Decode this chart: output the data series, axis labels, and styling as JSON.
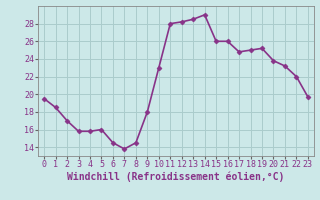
{
  "x": [
    0,
    1,
    2,
    3,
    4,
    5,
    6,
    7,
    8,
    9,
    10,
    11,
    12,
    13,
    14,
    15,
    16,
    17,
    18,
    19,
    20,
    21,
    22,
    23
  ],
  "y": [
    19.5,
    18.5,
    17.0,
    15.8,
    15.8,
    16.0,
    14.5,
    13.8,
    14.5,
    18.0,
    23.0,
    28.0,
    28.2,
    28.5,
    29.0,
    26.0,
    26.0,
    24.8,
    25.0,
    25.2,
    23.8,
    23.2,
    22.0,
    19.7
  ],
  "line_color": "#883388",
  "marker": "D",
  "marker_size": 2.5,
  "bg_color": "#cce8e8",
  "grid_color": "#aacccc",
  "xlabel": "Windchill (Refroidissement éolien,°C)",
  "xlabel_fontsize": 7.0,
  "ylim": [
    13,
    30
  ],
  "xlim": [
    -0.5,
    23.5
  ],
  "yticks": [
    14,
    16,
    18,
    20,
    22,
    24,
    26,
    28
  ],
  "xticks": [
    0,
    1,
    2,
    3,
    4,
    5,
    6,
    7,
    8,
    9,
    10,
    11,
    12,
    13,
    14,
    15,
    16,
    17,
    18,
    19,
    20,
    21,
    22,
    23
  ],
  "tick_fontsize": 6.0,
  "linewidth": 1.2
}
